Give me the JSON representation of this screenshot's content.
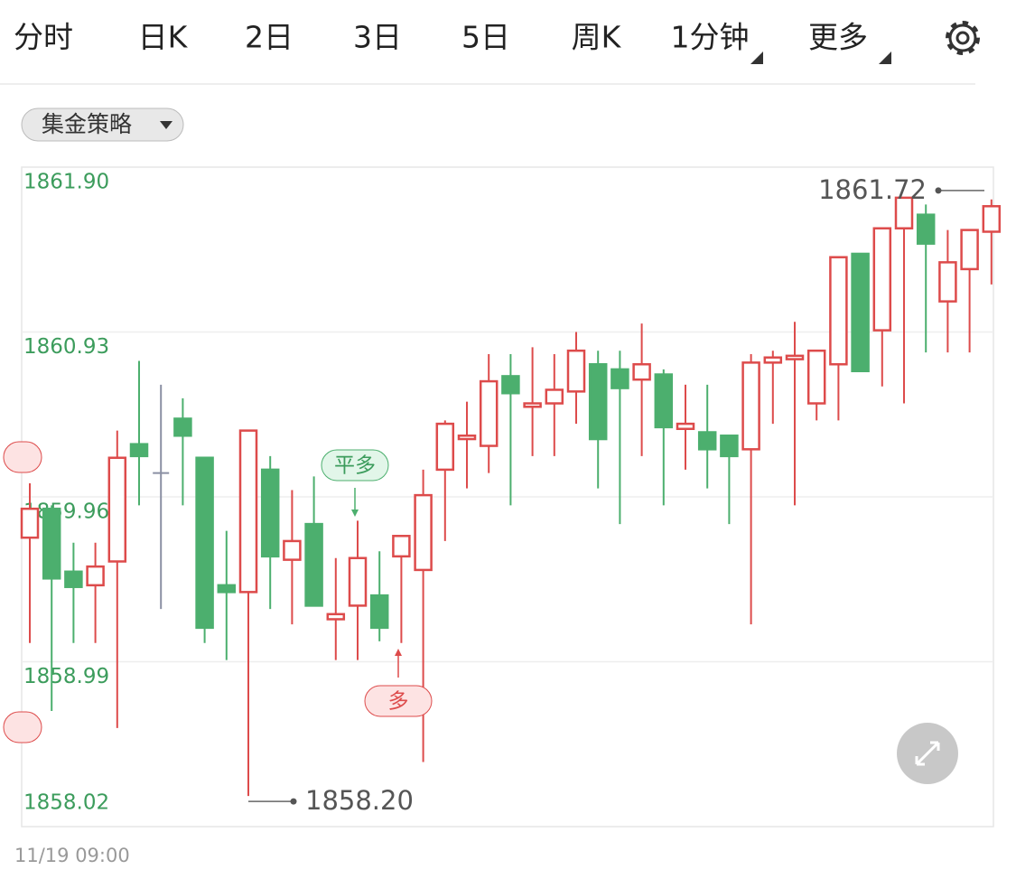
{
  "tabs": [
    {
      "label": "分时"
    },
    {
      "label": "日K"
    },
    {
      "label": "2日"
    },
    {
      "label": "3日"
    },
    {
      "label": "5日"
    },
    {
      "label": "周K"
    },
    {
      "label": "1分钟",
      "active": true,
      "menu": true
    },
    {
      "label": "更多",
      "menu": true
    }
  ],
  "strategy_dropdown": "集金策略",
  "markers": [
    {
      "text": "平多"
    },
    {
      "text": "多"
    }
  ],
  "chart_data": {
    "type": "candlestick",
    "up_color": "#dd4b4b",
    "down_color": "#4caf6e",
    "flat_color": "#8a8fa3",
    "grid": true,
    "ylim": [
      1858.02,
      1861.9
    ],
    "yticks": [
      1858.02,
      1858.99,
      1859.96,
      1860.93,
      {
        "value": 1861.9,
        "label": "1861.90"
      }
    ],
    "categories": [
      "11/19 09:00",
      null,
      null,
      null,
      null,
      null,
      null,
      null,
      null,
      null,
      null,
      null,
      null,
      null,
      null,
      null,
      null,
      null,
      null,
      null,
      null,
      null,
      null,
      null,
      null,
      null,
      null,
      null,
      null,
      null,
      null,
      null,
      null,
      null,
      null,
      null,
      null,
      null,
      null,
      null,
      null,
      null,
      null,
      null,
      null
    ],
    "open": [
      1859.72,
      1859.89,
      1859.52,
      1859.44,
      1859.58,
      1860.27,
      1860.1,
      1860.42,
      1860.19,
      1859.44,
      1859.4,
      1860.12,
      1859.59,
      1859.8,
      1859.24,
      1859.32,
      1859.38,
      1859.61,
      1859.53,
      1860.12,
      1860.3,
      1860.26,
      1860.67,
      1860.49,
      1860.51,
      1860.58,
      1860.74,
      1860.71,
      1860.65,
      1860.68,
      1860.36,
      1860.34,
      1860.32,
      1860.24,
      1860.75,
      1860.77,
      1860.51,
      1860.74,
      1861.39,
      1860.94,
      1861.54,
      1861.62,
      1861.11,
      1861.3,
      1861.52
    ],
    "high": [
      1860.04,
      1859.91,
      1859.69,
      1859.69,
      1860.35,
      1860.76,
      1860.62,
      1860.54,
      1860.19,
      1859.76,
      1860.35,
      1860.2,
      1860.0,
      1860.08,
      1859.6,
      1859.82,
      1859.64,
      1859.73,
      1860.12,
      1860.41,
      1860.52,
      1860.8,
      1860.8,
      1860.84,
      1860.8,
      1860.93,
      1860.82,
      1860.82,
      1860.98,
      1860.71,
      1860.62,
      1860.62,
      1860.32,
      1860.8,
      1860.82,
      1860.99,
      1860.82,
      1861.37,
      1861.39,
      1861.54,
      1861.72,
      1861.68,
      1861.53,
      1861.53,
      1861.71
    ],
    "low": [
      1859.1,
      1858.7,
      1859.1,
      1859.1,
      1858.6,
      1859.91,
      1859.3,
      1859.91,
      1859.1,
      1859.0,
      1858.2,
      1859.3,
      1859.21,
      1859.32,
      1859.0,
      1859.0,
      1859.11,
      1859.1,
      1858.4,
      1859.7,
      1860.01,
      1860.1,
      1859.91,
      1860.2,
      1860.2,
      1860.39,
      1860.01,
      1859.8,
      1860.2,
      1859.91,
      1860.12,
      1860.01,
      1859.8,
      1859.21,
      1860.39,
      1859.91,
      1860.41,
      1860.41,
      1860.7,
      1860.61,
      1860.51,
      1860.81,
      1860.81,
      1860.81,
      1861.21
    ],
    "close": [
      1859.89,
      1859.48,
      1859.43,
      1859.55,
      1860.19,
      1860.2,
      1860.1,
      1860.32,
      1859.19,
      1859.4,
      1860.35,
      1859.61,
      1859.7,
      1859.32,
      1859.27,
      1859.6,
      1859.19,
      1859.73,
      1859.97,
      1860.39,
      1860.32,
      1860.64,
      1860.57,
      1860.51,
      1860.59,
      1860.82,
      1860.3,
      1860.6,
      1860.74,
      1860.37,
      1860.39,
      1860.24,
      1860.2,
      1860.75,
      1860.78,
      1860.79,
      1860.82,
      1861.37,
      1860.7,
      1861.54,
      1861.72,
      1861.45,
      1861.34,
      1861.53,
      1861.67
    ],
    "high_label": "1861.72",
    "low_label": "1858.20"
  }
}
